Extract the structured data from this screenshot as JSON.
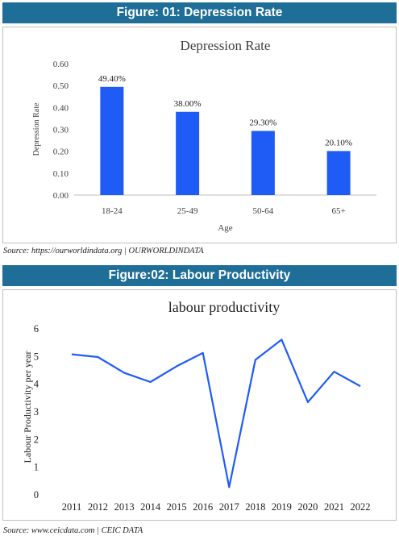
{
  "figures": {
    "fig1": {
      "header": "Figure: 01: Depression Rate",
      "source": "Source: https://ourworldindata.org | OURWORLDINDATA"
    },
    "fig2": {
      "header": "Figure:02: Labour Productivity",
      "source": "Source: www.ceicdata.com | CEIC DATA"
    }
  },
  "chart_data": [
    {
      "type": "bar",
      "title": "Depression Rate",
      "xlabel": "Age",
      "ylabel": "Depression Rate",
      "categories": [
        "18-24",
        "25-49",
        "50-64",
        "65+"
      ],
      "values": [
        0.494,
        0.38,
        0.293,
        0.201
      ],
      "data_labels": [
        "49.40%",
        "38.00%",
        "29.30%",
        "20.10%"
      ],
      "ylim": [
        0,
        0.6
      ],
      "yticks": [
        "0.00",
        "0.10",
        "0.20",
        "0.30",
        "0.40",
        "0.50",
        "0.60"
      ],
      "grid": false,
      "legend": "none",
      "bar_color": "#1f5cf5"
    },
    {
      "type": "line",
      "title": "labour productivity",
      "xlabel": "",
      "ylabel": "Labour Productivity per year",
      "x": [
        "2011",
        "2012",
        "2013",
        "2014",
        "2015",
        "2016",
        "2017",
        "2018",
        "2019",
        "2020",
        "2021",
        "2022"
      ],
      "values": [
        5.05,
        4.95,
        4.38,
        4.05,
        4.62,
        5.1,
        0.25,
        4.85,
        5.58,
        3.32,
        4.42,
        3.9
      ],
      "ylim": [
        0,
        6
      ],
      "yticks": [
        "0",
        "1",
        "2",
        "3",
        "4",
        "5",
        "6"
      ],
      "grid": false,
      "legend": "none",
      "line_color": "#1f5cf5"
    }
  ]
}
